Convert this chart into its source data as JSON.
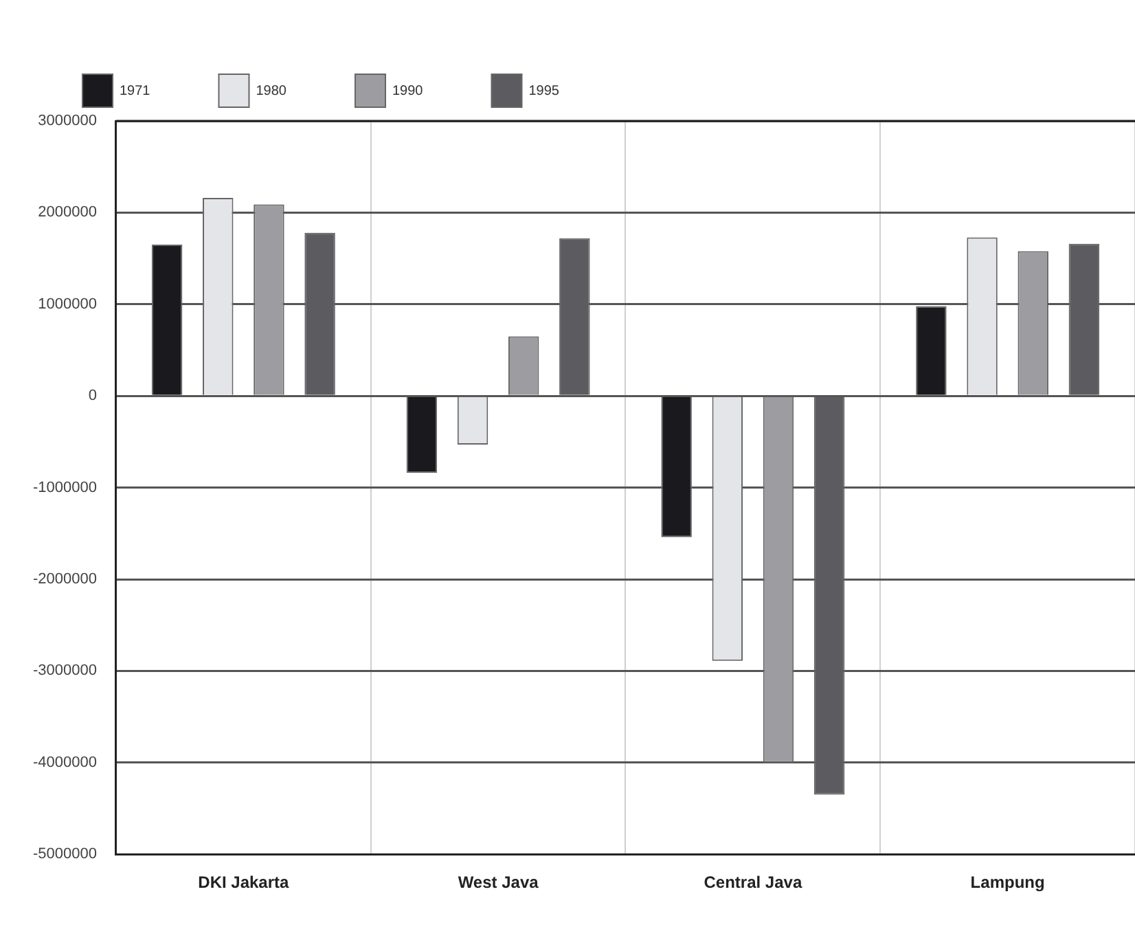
{
  "chart_data": {
    "type": "bar",
    "categories": [
      "DKI Jakarta",
      "West Java",
      "Central Java",
      "Lampung"
    ],
    "series": [
      {
        "name": "1971",
        "color": "#1a1a1e",
        "values": [
          1650000,
          -840000,
          -1540000,
          980000
        ]
      },
      {
        "name": "1980",
        "color": "#e4e5e8",
        "values": [
          2160000,
          -530000,
          -2890000,
          1730000
        ]
      },
      {
        "name": "1990",
        "color": "#9d9ca1",
        "values": [
          2090000,
          650000,
          -4000000,
          1580000
        ]
      },
      {
        "name": "1995",
        "color": "#5c5b60",
        "values": [
          1780000,
          1720000,
          -4350000,
          1660000
        ]
      }
    ],
    "ylim": [
      -5000000,
      3000000
    ],
    "yticks": [
      -5000000,
      -4000000,
      -3000000,
      -2000000,
      -1000000,
      0,
      1000000,
      2000000,
      3000000
    ],
    "grid": true,
    "legend": "top"
  }
}
